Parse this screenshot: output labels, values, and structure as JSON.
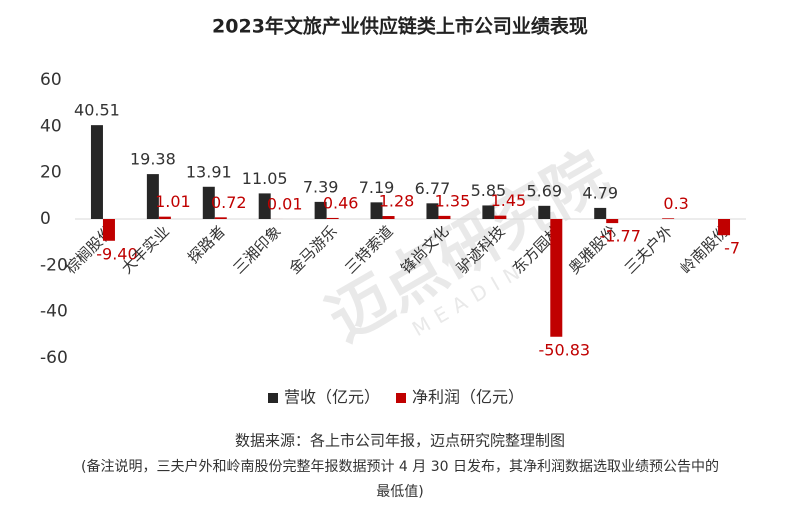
{
  "chart_data": {
    "type": "bar",
    "title": "2023年文旅产业供应链类上市公司业绩表现",
    "categories": [
      "棕榈股份",
      "大丰实业",
      "探路者",
      "三湘印象",
      "金马游乐",
      "三特索道",
      "锋尚文化",
      "驴迹科技",
      "东方园林",
      "奥雅股份",
      "三夫户外",
      "岭南股份"
    ],
    "series": [
      {
        "name": "营收（亿元）",
        "color": "#262626",
        "values": [
          40.51,
          19.38,
          13.91,
          11.05,
          7.39,
          7.19,
          6.77,
          5.85,
          5.69,
          4.79,
          null,
          null
        ]
      },
      {
        "name": "净利润（亿元）",
        "color": "#c00000",
        "values": [
          -9.4,
          1.01,
          0.72,
          0.01,
          0.46,
          1.28,
          1.35,
          1.45,
          -50.83,
          -1.77,
          0.3,
          -7
        ],
        "value_labels": [
          "-9.40",
          "1.01",
          "0.72",
          "0.01",
          "0.46",
          "1.28",
          "1.35",
          "1.45",
          "-50.83",
          "-1.77",
          "0.3",
          "-7"
        ]
      }
    ],
    "ylim": [
      -60,
      60
    ],
    "yticks": [
      -60,
      -40,
      -20,
      0,
      20,
      40,
      60
    ],
    "grid": false,
    "watermark": "迈点研究院",
    "watermark_sub": "MEADIN",
    "source": "数据来源：各上市公司年报，迈点研究院整理制图",
    "notes": [
      "(备注说明，三夫户外和岭南股份完整年报数据预计 4 月 30 日发布，其净利润数据选取业绩预公告中的",
      "最低值)"
    ]
  }
}
